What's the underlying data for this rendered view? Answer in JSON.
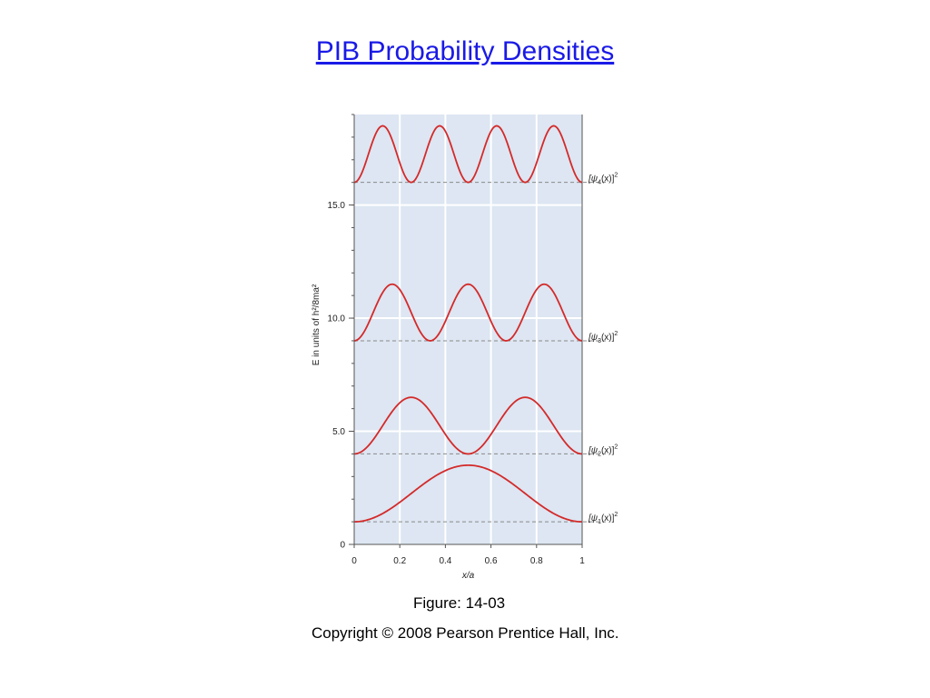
{
  "slide": {
    "title": "PIB Probability Densities",
    "figure_label": "Figure: 14-03",
    "copyright": "Copyright © 2008 Pearson Prentice Hall, Inc."
  },
  "colors": {
    "plot_background": "#dde6f2",
    "curve": "#d42a2a",
    "gridline": "#ffffff",
    "baseline_dash": "#8a8a8a",
    "title_link": "#1a1ae6"
  },
  "chart_data": {
    "type": "line",
    "title": "",
    "xlabel": "x/a",
    "ylabel": "E in units of h²/8ma²",
    "xlim": [
      0,
      1
    ],
    "ylim": [
      0,
      19
    ],
    "grid": true,
    "x_ticks": [
      {
        "value": 0,
        "label": "0"
      },
      {
        "value": 0.2,
        "label": "0.2"
      },
      {
        "value": 0.4,
        "label": "0.4"
      },
      {
        "value": 0.6,
        "label": "0.6"
      },
      {
        "value": 0.8,
        "label": "0.8"
      },
      {
        "value": 1,
        "label": "1"
      }
    ],
    "y_major_ticks": [
      {
        "value": 0,
        "label": "0"
      },
      {
        "value": 5,
        "label": "5.0"
      },
      {
        "value": 10,
        "label": "10.0"
      },
      {
        "value": 15,
        "label": "15.0"
      }
    ],
    "y_minor_tick_step": 1,
    "series": [
      {
        "n": 1,
        "label_main": "[ψ",
        "label_sub": "1",
        "label_mid": "(x)]",
        "label_sup": "2",
        "baseline": 1,
        "amplitude": 2.5
      },
      {
        "n": 2,
        "label_main": "[ψ",
        "label_sub": "2",
        "label_mid": "(x)]",
        "label_sup": "2",
        "baseline": 4,
        "amplitude": 2.5
      },
      {
        "n": 3,
        "label_main": "[ψ",
        "label_sub": "3",
        "label_mid": "(x)]",
        "label_sup": "2",
        "baseline": 9,
        "amplitude": 2.5
      },
      {
        "n": 4,
        "label_main": "[ψ",
        "label_sub": "4",
        "label_mid": "(x)]",
        "label_sup": "2",
        "baseline": 16,
        "amplitude": 2.5
      }
    ]
  }
}
